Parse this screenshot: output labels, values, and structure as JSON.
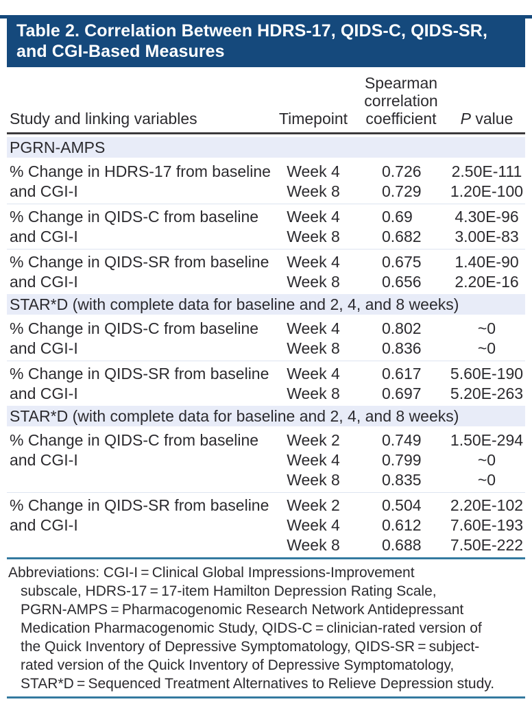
{
  "title_lines": [
    "Table 2. Correlation Between HDRS-17, QIDS-C, QIDS-SR,",
    "and CGI-Based Measures"
  ],
  "columns": {
    "study": "Study and linking variables",
    "timepoint": "Timepoint",
    "coefficient_lines": [
      "Spearman",
      "correlation",
      "coefficient"
    ],
    "p_value": "P value"
  },
  "sections": [
    {
      "header": "PGRN-AMPS",
      "groups": [
        {
          "label_lines": [
            "% Change in HDRS-17 from baseline",
            "and CGI-I"
          ],
          "rows": [
            {
              "timepoint": "Week 4",
              "coefficient": "0.726",
              "p_value": "2.50E-111"
            },
            {
              "timepoint": "Week 8",
              "coefficient": "0.729",
              "p_value": "1.20E-100"
            }
          ]
        },
        {
          "label_lines": [
            "% Change in QIDS-C from baseline",
            "and CGI-I"
          ],
          "rows": [
            {
              "timepoint": "Week 4",
              "coefficient": "0.69",
              "p_value": "4.30E-96"
            },
            {
              "timepoint": "Week 8",
              "coefficient": "0.682",
              "p_value": "3.00E-83"
            }
          ]
        },
        {
          "label_lines": [
            "% Change in QIDS-SR from baseline",
            "and CGI-I"
          ],
          "rows": [
            {
              "timepoint": "Week 4",
              "coefficient": "0.675",
              "p_value": "1.40E-90"
            },
            {
              "timepoint": "Week 8",
              "coefficient": "0.656",
              "p_value": "2.20E-16"
            }
          ]
        }
      ]
    },
    {
      "header": "STAR*D (with complete data for baseline and 2, 4, and 8 weeks)",
      "groups": [
        {
          "label_lines": [
            "% Change in QIDS-C from baseline",
            "and CGI-I"
          ],
          "rows": [
            {
              "timepoint": "Week 4",
              "coefficient": "0.802",
              "p_value": "~0"
            },
            {
              "timepoint": "Week 8",
              "coefficient": "0.836",
              "p_value": "~0"
            }
          ]
        },
        {
          "label_lines": [
            "% Change in QIDS-SR from baseline",
            "and CGI-I"
          ],
          "rows": [
            {
              "timepoint": "Week 4",
              "coefficient": "0.617",
              "p_value": "5.60E-190"
            },
            {
              "timepoint": "Week 8",
              "coefficient": "0.697",
              "p_value": "5.20E-263"
            }
          ]
        }
      ]
    },
    {
      "header": "STAR*D (with complete data for baseline and 2, 4, and 8 weeks)",
      "groups": [
        {
          "label_lines": [
            "% Change in QIDS-C from baseline",
            "and CGI-I"
          ],
          "rows": [
            {
              "timepoint": "Week 2",
              "coefficient": "0.749",
              "p_value": "1.50E-294"
            },
            {
              "timepoint": "Week 4",
              "coefficient": "0.799",
              "p_value": "~0"
            },
            {
              "timepoint": "Week 8",
              "coefficient": "0.835",
              "p_value": "~0"
            }
          ]
        },
        {
          "label_lines": [
            "% Change in QIDS-SR from baseline",
            "and CGI-I"
          ],
          "rows": [
            {
              "timepoint": "Week 2",
              "coefficient": "0.504",
              "p_value": "2.20E-102"
            },
            {
              "timepoint": "Week 4",
              "coefficient": "0.612",
              "p_value": "7.60E-193"
            },
            {
              "timepoint": "Week 8",
              "coefficient": "0.688",
              "p_value": "7.50E-222"
            }
          ]
        }
      ]
    }
  ],
  "footnote": {
    "lines": [
      "Abbreviations: CGI-I = Clinical Global Impressions-Improvement",
      "subscale, HDRS-17 = 17-item Hamilton Depression Rating Scale,",
      "PGRN-AMPS = Pharmacogenomic Research Network Antidepressant",
      "Medication Pharmacogenomic Study, QIDS-C = clinician-rated version of",
      "the Quick Inventory of Depressive Symptomatology, QIDS-SR = subject-",
      "rated version of the Quick Inventory of Depressive Symptomatology,",
      "STAR*D = Sequenced Treatment Alternatives to Relieve Depression study."
    ]
  },
  "colors": {
    "navy": "#15497c",
    "band": "#e8ecf8",
    "rule-dark": "#3b3a3c",
    "rule-teal": "#33799f",
    "separator": "#dde4f0",
    "text": "#2b2a2e"
  }
}
